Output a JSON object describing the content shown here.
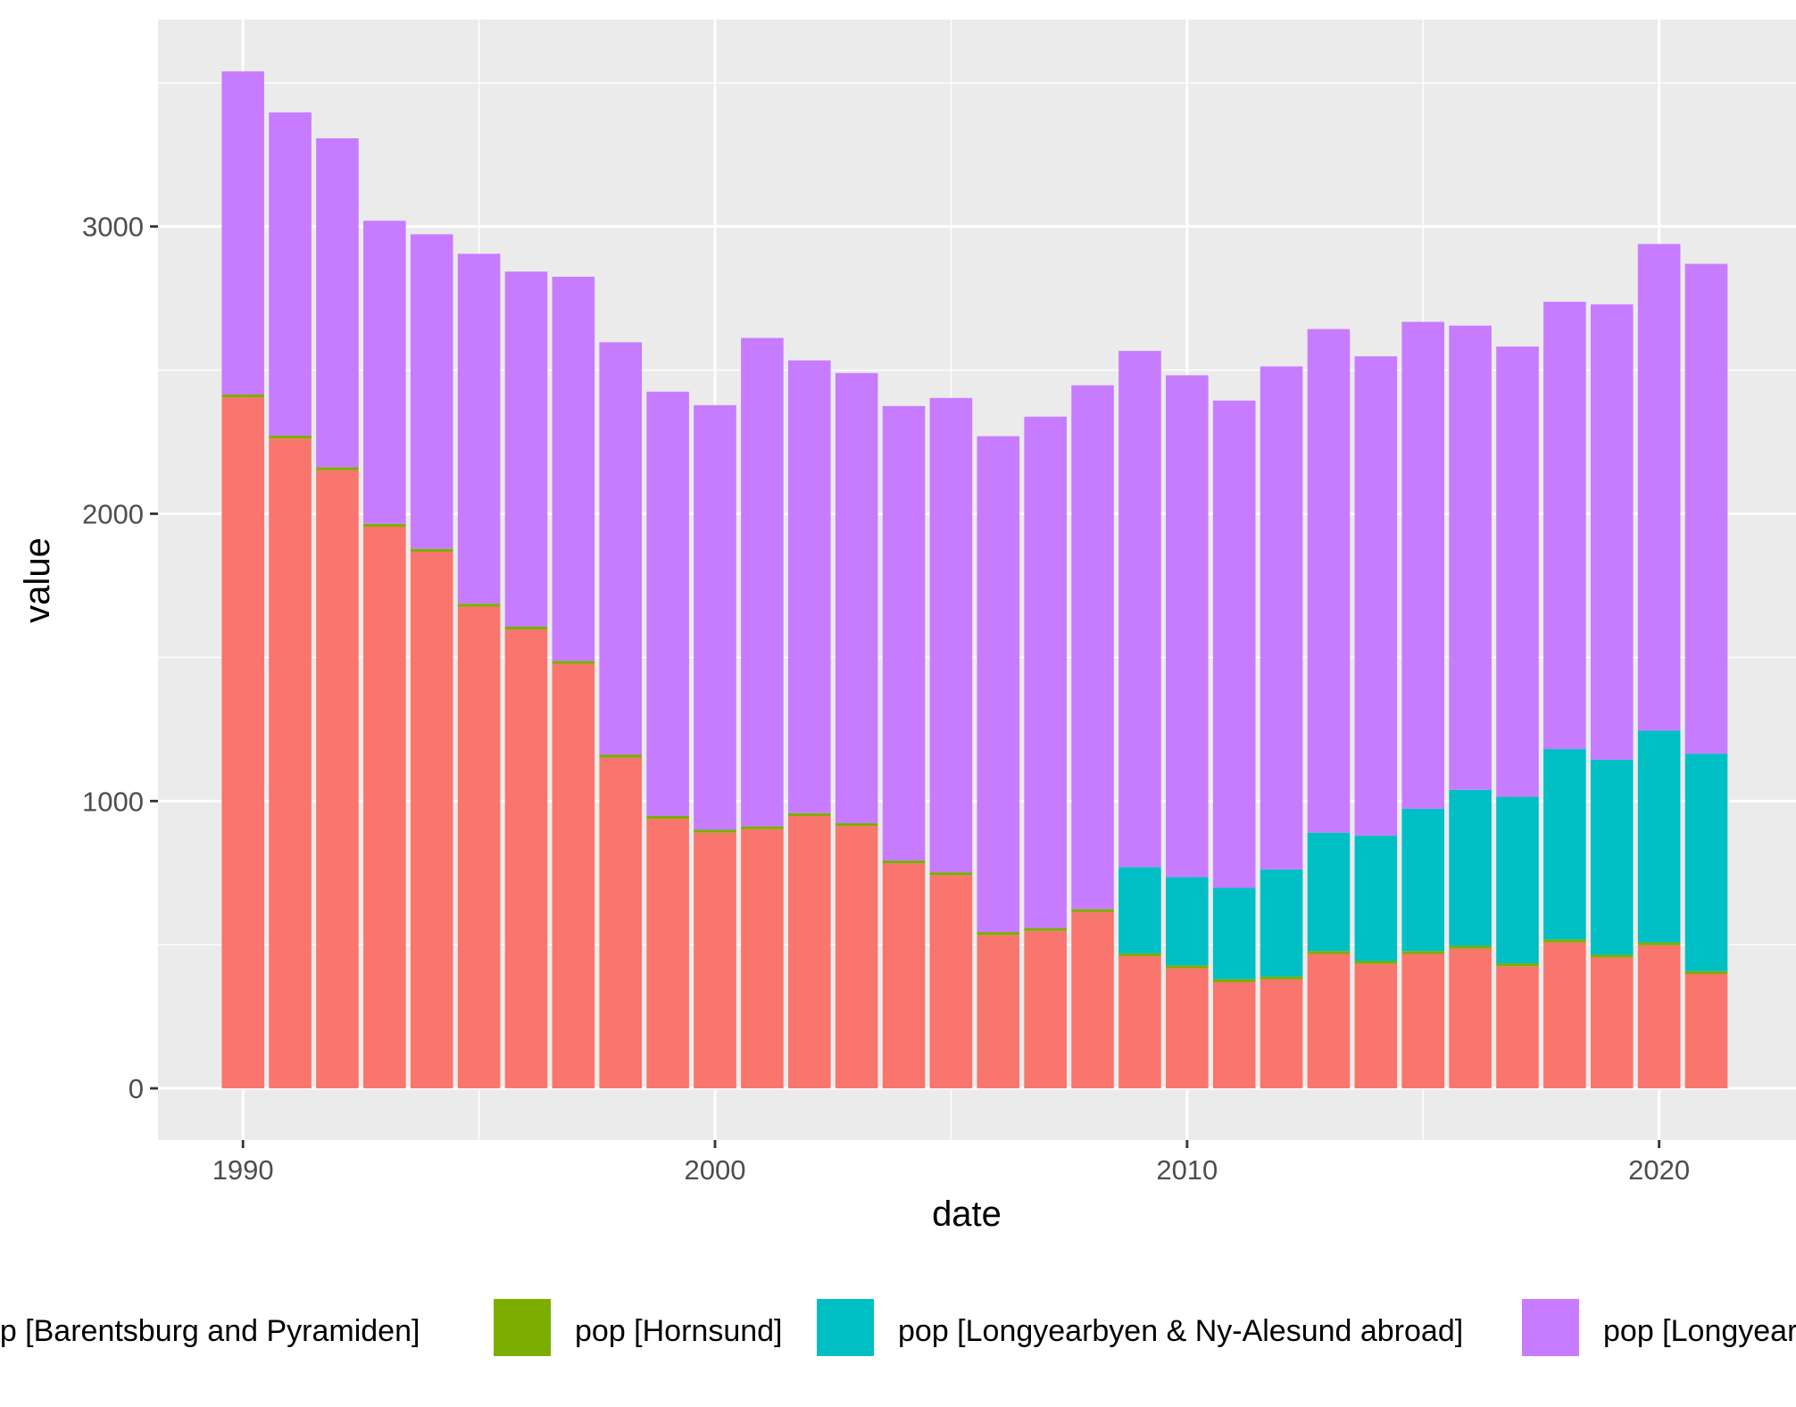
{
  "chart_data": {
    "type": "bar",
    "stacked": true,
    "xlabel": "date",
    "ylabel": "value",
    "x": [
      1990,
      1991,
      1992,
      1993,
      1994,
      1995,
      1996,
      1997,
      1998,
      1999,
      2000,
      2001,
      2002,
      2003,
      2004,
      2005,
      2006,
      2007,
      2008,
      2009,
      2010,
      2011,
      2012,
      2013,
      2014,
      2015,
      2016,
      2017,
      2018,
      2019,
      2020,
      2021
    ],
    "xlim": [
      1988.2,
      2022.9
    ],
    "ylim": [
      -180,
      3720
    ],
    "x_ticks": [
      1990,
      2000,
      2010,
      2020
    ],
    "y_ticks": [
      0,
      1000,
      2000,
      3000
    ],
    "grid": true,
    "legend_position": "bottom",
    "series": [
      {
        "name": "pop [Barentsburg and Pyramiden]",
        "color": "#F8766D",
        "values": [
          2405,
          2262,
          2152,
          1955,
          1868,
          1677,
          1597,
          1478,
          1151,
          938,
          890,
          902,
          948,
          913,
          783,
          742,
          534,
          548,
          614,
          460,
          418,
          370,
          379,
          468,
          433,
          468,
          486,
          425,
          508,
          455,
          498,
          398
        ]
      },
      {
        "name": "pop [Hornsund]",
        "color": "#7CAE00",
        "values": [
          10,
          10,
          10,
          10,
          10,
          10,
          10,
          10,
          10,
          10,
          10,
          10,
          10,
          10,
          10,
          10,
          10,
          10,
          10,
          10,
          10,
          10,
          10,
          10,
          10,
          10,
          10,
          10,
          10,
          10,
          10,
          10
        ]
      },
      {
        "name": "pop [Longyearbyen & Ny-Alesund abroad]",
        "color": "#00BFC4",
        "values": [
          0,
          0,
          0,
          0,
          0,
          0,
          0,
          0,
          0,
          0,
          0,
          0,
          0,
          0,
          0,
          0,
          0,
          0,
          0,
          300,
          307,
          318,
          373,
          412,
          437,
          495,
          543,
          580,
          663,
          679,
          737,
          757
        ]
      },
      {
        "name": "pop [Longyearbyen & Ny-Alesund Norwegian]",
        "color": "#C77CFF",
        "values": [
          1125,
          1125,
          1145,
          1055,
          1095,
          1218,
          1236,
          1337,
          1436,
          1477,
          1478,
          1700,
          1576,
          1567,
          1582,
          1651,
          1726,
          1780,
          1823,
          1797,
          1747,
          1696,
          1751,
          1753,
          1668,
          1695,
          1616,
          1567,
          1557,
          1585,
          1694,
          1705
        ]
      }
    ]
  }
}
